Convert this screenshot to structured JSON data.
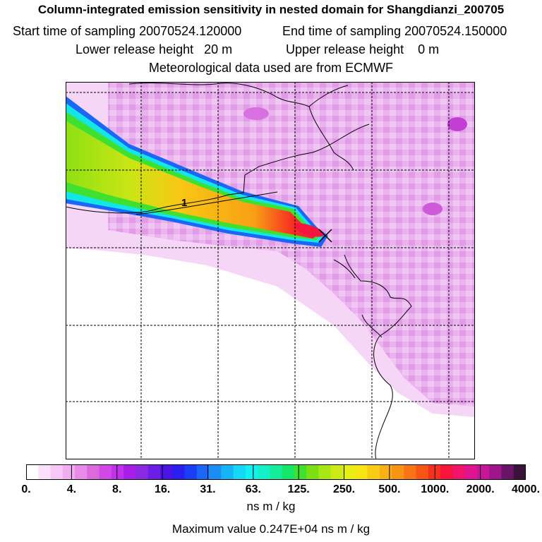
{
  "header": {
    "title": "Column-integrated emission sensitivity in nested domain for Shangdianzi_200705",
    "start_label": "Start time of sampling",
    "start_value": "20070524.120000",
    "end_label": "End time of sampling",
    "end_value": "20070524.150000",
    "lower_label": "Lower release height",
    "lower_value": "20 m",
    "upper_label": "Upper release height",
    "upper_value": "0 m",
    "met_text": "Meteorological data used are from ECMWF"
  },
  "map": {
    "contour_label": "1",
    "receptor_marker": "x-marker"
  },
  "colorbar": {
    "ticks": [
      "0.",
      "4.",
      "8.",
      "16.",
      "31.",
      "63.",
      "125.",
      "250.",
      "500.",
      "1000.",
      "2000.",
      "4000."
    ],
    "colors": [
      "#ffffff",
      "#fbe0fb",
      "#f6c8f6",
      "#f0aef0",
      "#e88ae8",
      "#dd6add",
      "#d048e6",
      "#c030ee",
      "#a81ee8",
      "#8a2be2",
      "#6a1ee6",
      "#4a14e6",
      "#2a1ef0",
      "#1a3ef6",
      "#1a66f6",
      "#1a8ef6",
      "#14b4f6",
      "#14d8f6",
      "#14f0f0",
      "#14f0c8",
      "#14ee9a",
      "#14e66a",
      "#40e030",
      "#7ae014",
      "#a8e614",
      "#ccea14",
      "#e6ee14",
      "#f6e414",
      "#f8cc14",
      "#f8b014",
      "#f89414",
      "#f87414",
      "#f85414",
      "#f8301e",
      "#f8143c",
      "#f0146a",
      "#e01490",
      "#c81498",
      "#a0148c",
      "#6a1468",
      "#3a1438"
    ],
    "units": "ns m / kg"
  },
  "footer": {
    "max_value_text": "Maximum value  0.247E+04 ns m / kg"
  }
}
